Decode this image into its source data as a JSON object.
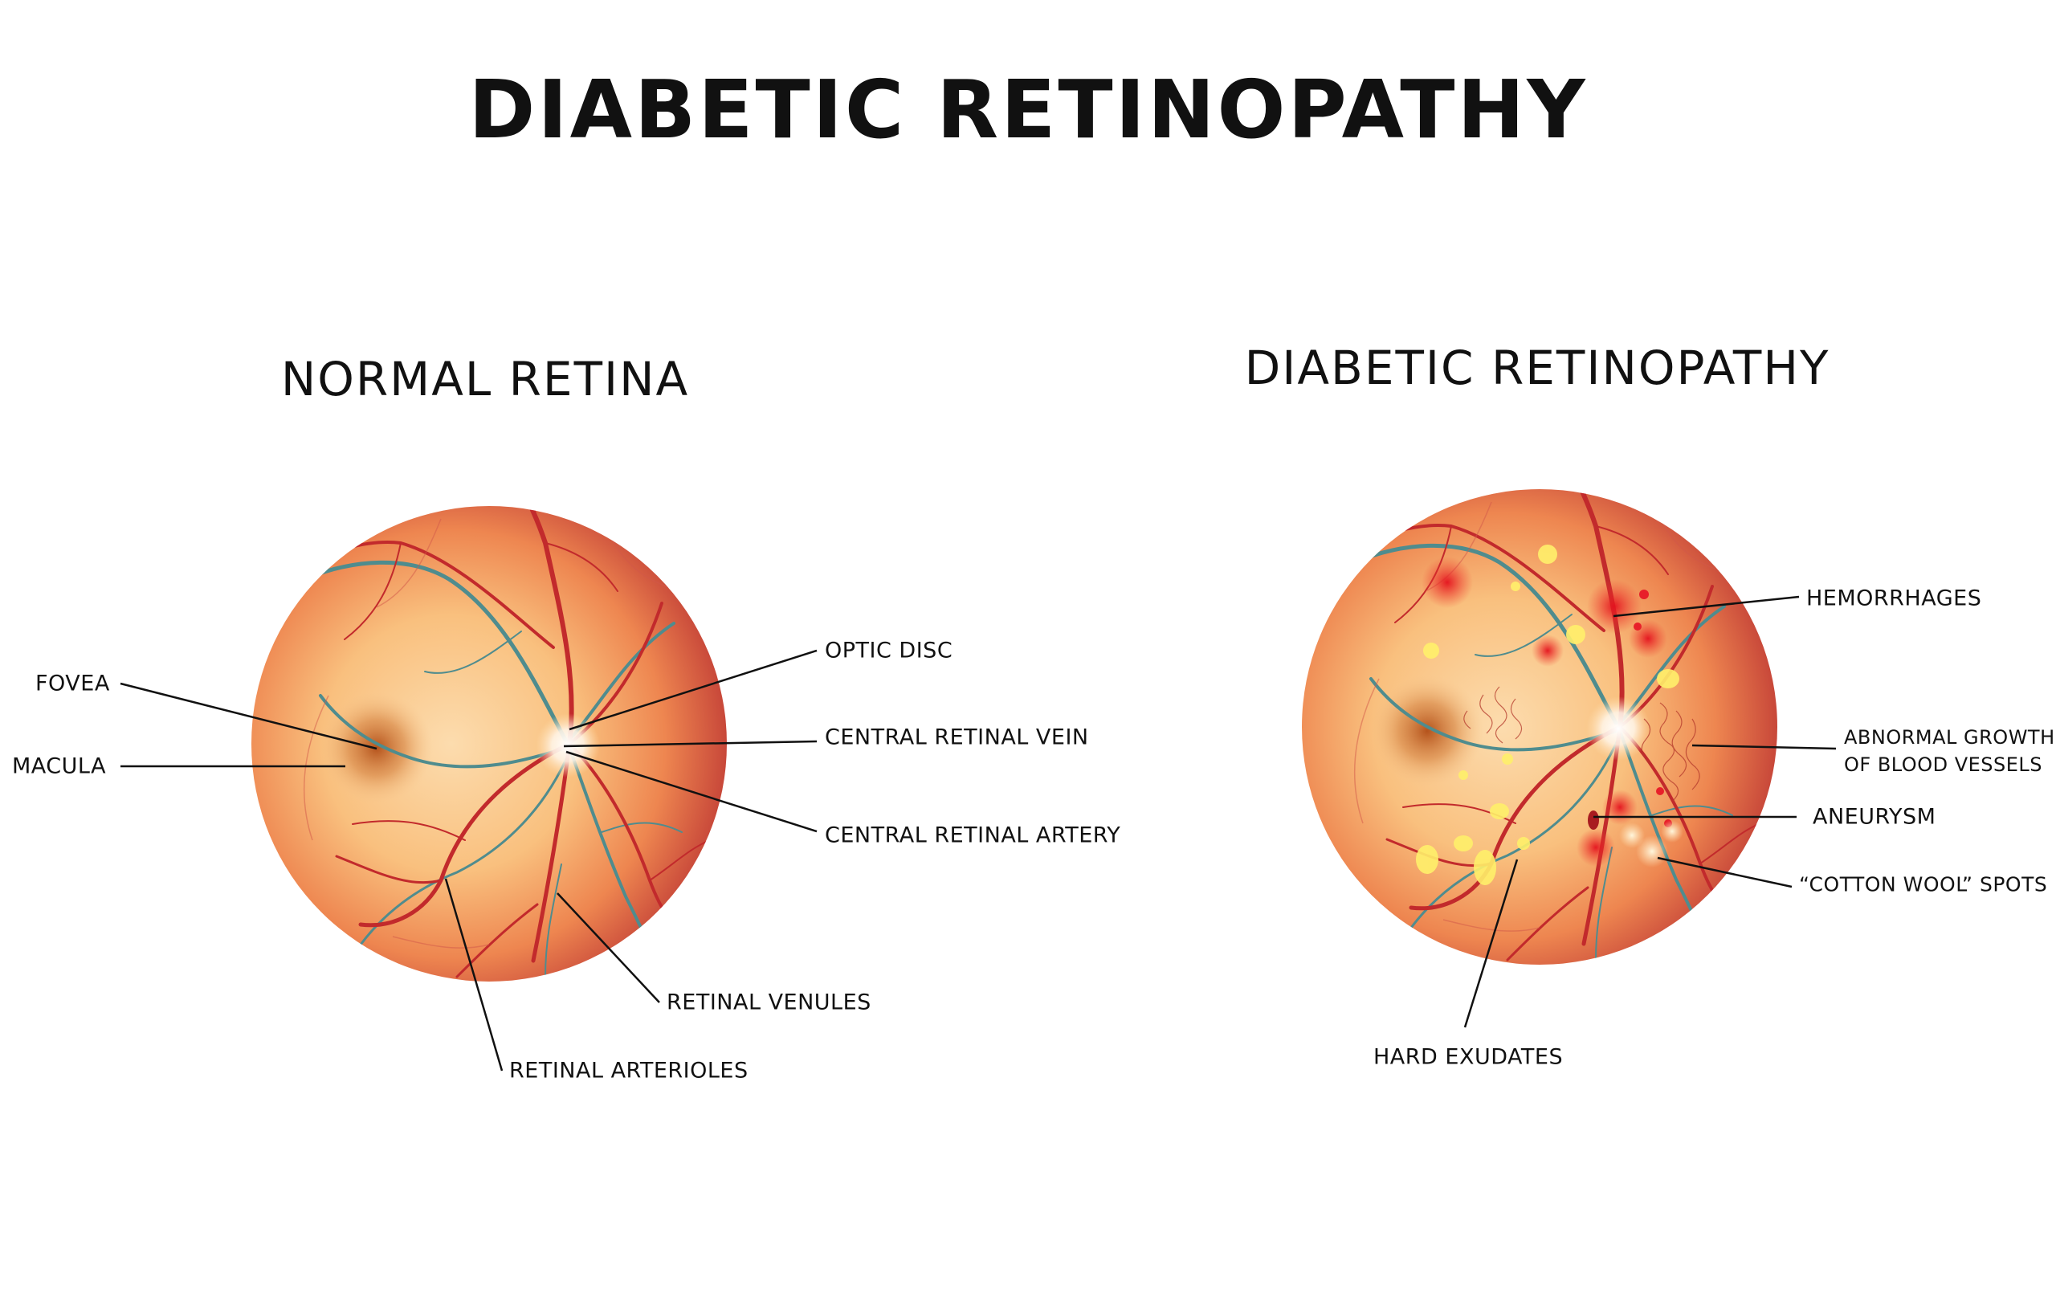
{
  "title": "DIABETIC RETINOPATHY",
  "panels": {
    "normal": {
      "heading": "NORMAL RETINA",
      "labels": {
        "fovea": "FOVEA",
        "macula": "MACULA",
        "optic_disc": "OPTIC DISC",
        "central_retinal_vein": "CENTRAL RETINAL VEIN",
        "central_retinal_artery": "CENTRAL RETINAL ARTERY",
        "retinal_venules": "RETINAL VENULES",
        "retinal_arterioles": "RETINAL ARTERIOLES"
      }
    },
    "diabetic": {
      "heading": "DIABETIC RETINOPATHY",
      "labels": {
        "hemorrhages": "HEMORRHAGES",
        "abnormal_growth_line1": "ABNORMAL GROWTH",
        "abnormal_growth_line2": "OF BLOOD VESSELS",
        "aneurysm": "ANEURYSM",
        "cotton_wool": "“COTTON WOOL” SPOTS",
        "hard_exudates": "HARD EXUDATES"
      }
    }
  },
  "colors": {
    "retina_center": "#fcd9a4",
    "retina_edge": "#c8403a",
    "artery": "#c22a2c",
    "vein": "#4f8c8e",
    "exudate": "#fff06a",
    "hemorrhage": "#e8202a"
  }
}
